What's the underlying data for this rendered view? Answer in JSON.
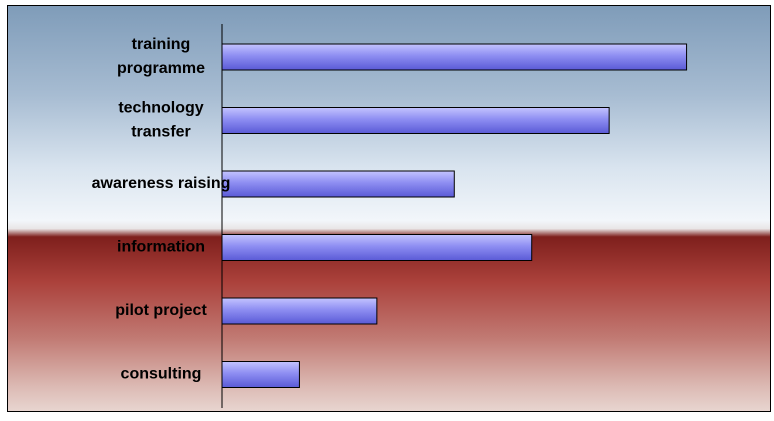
{
  "chart_data": {
    "type": "bar",
    "orientation": "horizontal",
    "categories": [
      "training programme",
      "technology transfer",
      "awareness raising",
      "information",
      "pilot project",
      "consulting"
    ],
    "category_label_lines": [
      [
        "training",
        "programme"
      ],
      [
        "technology",
        "transfer"
      ],
      [
        "awareness raising"
      ],
      [
        "information"
      ],
      [
        "pilot project"
      ],
      [
        "consulting"
      ]
    ],
    "values": [
      60,
      50,
      30,
      40,
      20,
      10
    ],
    "xlim": [
      0,
      70
    ],
    "title": "",
    "xlabel": "",
    "ylabel": "",
    "grid": false,
    "legend": "none",
    "colors": {
      "bar_top": "#c4c4ff",
      "bar_mid": "#8e8ef2",
      "bar_bottom": "#5a5ad6",
      "bar_edge": "#000000",
      "axis": "#000000"
    }
  }
}
